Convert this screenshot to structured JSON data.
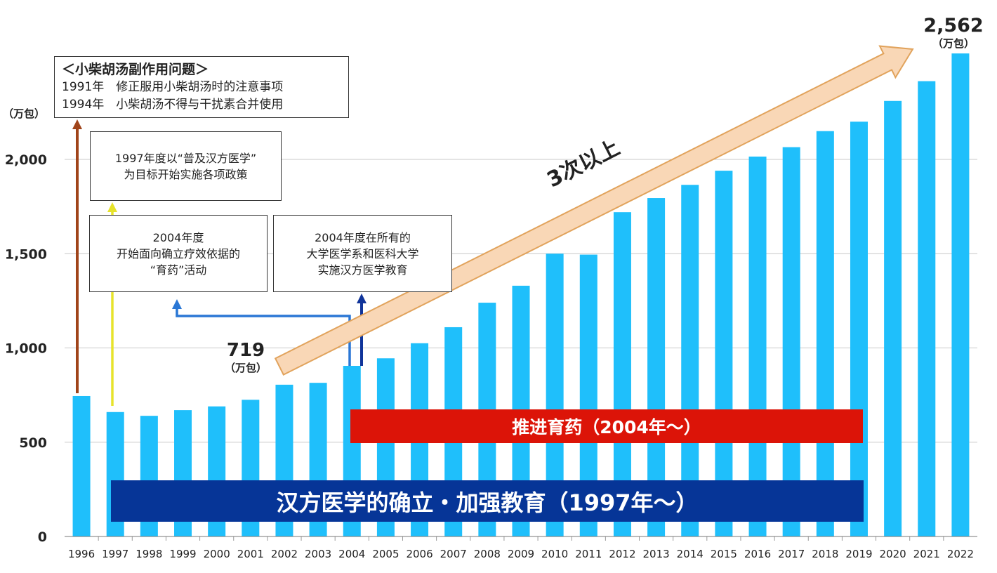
{
  "chart_data": {
    "type": "bar",
    "y_unit": "（万包）",
    "ylim": [
      0,
      2600
    ],
    "yticks": [
      0,
      500,
      1000,
      1500,
      2000
    ],
    "ytick_labels": [
      "0",
      "500",
      "1,000",
      "1,500",
      "2,000"
    ],
    "grid": true,
    "categories": [
      "1996",
      "1997",
      "1998",
      "1999",
      "2000",
      "2001",
      "2002",
      "2003",
      "2004",
      "2005",
      "2006",
      "2007",
      "2008",
      "2009",
      "2010",
      "2011",
      "2012",
      "2013",
      "2014",
      "2015",
      "2016",
      "2017",
      "2018",
      "2019",
      "2020",
      "2021",
      "2022"
    ],
    "values": [
      745,
      660,
      640,
      670,
      690,
      725,
      805,
      815,
      905,
      945,
      1025,
      1110,
      1240,
      1330,
      1500,
      1495,
      1720,
      1795,
      1865,
      1940,
      2015,
      2065,
      2150,
      2200,
      2310,
      2415,
      2562
    ],
    "bar_color": "#1fbffb",
    "grid_color": "#c8c8c8"
  },
  "annotations": {
    "issue_box": {
      "title": "＜小柴胡汤副作用问题＞",
      "line1": "1991年　修正服用小柴胡汤时的注意事项",
      "line2": "1994年　小柴胡汤不得与干扰素合并使用"
    },
    "box_1997": {
      "line1": "1997年度以“普及汉方医学”",
      "line2": "为目标开始实施各项政策"
    },
    "box_2004a": {
      "line1": "2004年度",
      "line2": "开始面向确立疗效依据的",
      "line3": "“育药”活动"
    },
    "box_2004b": {
      "line1": "2004年度在所有的",
      "line2": "大学医学系和医科大学",
      "line3": "实施汉方医学教育"
    },
    "value_719": {
      "value": "719",
      "unit": "（万包）"
    },
    "value_2562": {
      "value": "2,562",
      "unit": "（万包）"
    },
    "growth_label": "3次以上",
    "banner_red": "推进育药（2004年～）",
    "banner_blue": "汉方医学的确立・加强教育（1997年～）"
  },
  "colors": {
    "red_banner": "#dc1408",
    "blue_banner": "#063597",
    "arrow_fill": "#f9d7b6",
    "arrow_stroke": "#e1a35c",
    "arrow_brown": "#a0441a",
    "arrow_yellow": "#e7e32b",
    "arrow_blue_light": "#2a77d5",
    "arrow_blue_dark": "#10349a"
  }
}
